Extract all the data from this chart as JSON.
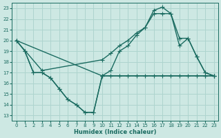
{
  "bg_color": "#cde8e3",
  "grid_color": "#aed4ce",
  "line_color": "#1a6b60",
  "line_width": 1.0,
  "marker_size": 2.5,
  "xlabel": "Humidex (Indice chaleur)",
  "xlim": [
    -0.5,
    23.5
  ],
  "ylim": [
    12.5,
    23.5
  ],
  "yticks": [
    13,
    14,
    15,
    16,
    17,
    18,
    19,
    20,
    21,
    22,
    23
  ],
  "xticks": [
    0,
    1,
    2,
    3,
    4,
    5,
    6,
    7,
    8,
    9,
    10,
    11,
    12,
    13,
    14,
    15,
    16,
    17,
    18,
    19,
    20,
    21,
    22,
    23
  ],
  "line1_x": [
    0,
    1,
    2,
    3,
    4,
    5,
    6,
    7,
    8,
    9,
    10,
    11,
    12,
    13,
    14,
    15,
    16,
    17,
    18,
    19,
    20,
    21,
    22,
    23
  ],
  "line1_y": [
    20,
    19,
    17,
    17,
    16.5,
    15.5,
    14.5,
    14,
    13.3,
    13.3,
    16.7,
    16.7,
    16.7,
    16.7,
    16.7,
    16.7,
    16.7,
    16.7,
    16.7,
    16.7,
    16.7,
    16.7,
    16.7,
    16.7
  ],
  "line2_x": [
    0,
    10,
    11,
    12,
    13,
    14,
    15,
    16,
    17,
    18,
    19,
    20,
    21,
    22,
    23
  ],
  "line2_y": [
    20,
    16.7,
    17.2,
    19.0,
    19.5,
    20.5,
    21.2,
    22.8,
    23.1,
    22.5,
    19.5,
    20.2,
    18.5,
    17.0,
    16.7
  ],
  "line3_x": [
    0,
    3,
    10,
    11,
    12,
    13,
    14,
    15,
    16,
    17,
    18,
    19,
    20,
    21,
    22,
    23
  ],
  "line3_y": [
    20,
    17.2,
    18.2,
    18.8,
    19.5,
    20.0,
    20.7,
    21.2,
    22.5,
    22.5,
    22.5,
    20.2,
    20.2,
    18.5,
    17.0,
    16.7
  ],
  "line4_x": [
    1,
    2,
    3,
    4,
    5,
    6,
    7,
    8,
    9,
    10,
    22,
    23
  ],
  "line4_y": [
    19,
    17,
    17,
    16.5,
    15.5,
    14.5,
    14,
    13.3,
    13.3,
    16.7,
    16.7,
    16.7
  ]
}
